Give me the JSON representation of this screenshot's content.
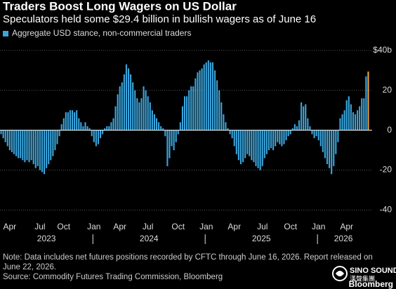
{
  "chart_data": {
    "type": "bar",
    "title": "Traders Boost Long Wagers on US Dollar",
    "subtitle": "Speculators held some $29.4 billion in bullish wagers as of June 16",
    "categories": [
      null,
      null,
      null,
      null,
      "Apr",
      null,
      null,
      null,
      null,
      null,
      null,
      null,
      null,
      null,
      null,
      null,
      null,
      null,
      "Jul",
      null,
      null,
      null,
      null,
      null,
      null,
      null,
      null,
      null,
      null,
      "Oct",
      null,
      null,
      null,
      null,
      null,
      null,
      null,
      null,
      null,
      null,
      null,
      null,
      null,
      "Jan",
      null,
      null,
      null,
      null,
      null,
      null,
      null,
      null,
      null,
      null,
      null,
      "Apr",
      null,
      null,
      null,
      null,
      null,
      null,
      null,
      null,
      null,
      null,
      null,
      null,
      "Jul",
      null,
      null,
      null,
      null,
      null,
      null,
      null,
      null,
      null,
      null,
      null,
      null,
      null,
      "Oct",
      null,
      null,
      null,
      null,
      null,
      null,
      null,
      null,
      null,
      null,
      null,
      null,
      "Jan",
      null,
      null,
      null,
      null,
      null,
      null,
      null,
      null,
      null,
      null,
      null,
      null,
      "Apr",
      null,
      null,
      null,
      null,
      null,
      null,
      null,
      null,
      null,
      null,
      null,
      null,
      "Jul",
      null,
      null,
      null,
      null,
      null,
      null,
      null,
      null,
      null,
      null,
      null,
      null,
      "Oct",
      null,
      null,
      null,
      null,
      null,
      null,
      null,
      null,
      null,
      null,
      null,
      null,
      "Jan",
      null,
      null,
      null,
      null,
      null,
      null,
      null,
      null,
      null,
      null,
      null,
      null,
      "Apr",
      null,
      null,
      null,
      null,
      null,
      null,
      null,
      null,
      null,
      null
    ],
    "x_groups": [
      "2023",
      "2024",
      "2025",
      "2026"
    ],
    "series": [
      {
        "name": "Aggregate USD stance, non-commercial traders",
        "color": "#3aa6de",
        "values": [
          -2,
          -4,
          -6,
          -8,
          -10,
          -11,
          -12,
          -13,
          -14,
          -14,
          -15,
          -16,
          -15,
          -16,
          -15,
          -17,
          -19,
          -18,
          -20,
          -21,
          -22,
          -19,
          -17,
          -15,
          -13,
          -10,
          -7,
          -3,
          3,
          6,
          9,
          9,
          10,
          10,
          9,
          10,
          6,
          4,
          2,
          4,
          2,
          1,
          -3,
          -6,
          -8,
          -7,
          -4,
          -2,
          1,
          2,
          2,
          4,
          6,
          12,
          18,
          22,
          24,
          28,
          33,
          31,
          28,
          24,
          20,
          16,
          14,
          16,
          22,
          20,
          17,
          14,
          10,
          8,
          6,
          4,
          2,
          1,
          -3,
          -18,
          -14,
          -8,
          -10,
          -6,
          -2,
          4,
          12,
          17,
          17,
          20,
          22,
          22,
          26,
          29,
          30,
          31,
          33,
          34,
          35,
          34,
          34,
          30,
          25,
          20,
          14,
          8,
          4,
          1,
          -2,
          -4,
          -8,
          -12,
          -15,
          -17,
          -16,
          -14,
          -12,
          -13,
          -15,
          -16,
          -18,
          -19,
          -20,
          -18,
          -14,
          -12,
          -10,
          -9,
          -10,
          -8,
          -6,
          -7,
          -8,
          -7,
          -5,
          -3,
          -2,
          1,
          3,
          2,
          5,
          14,
          12,
          13,
          6,
          2,
          -2,
          -4,
          -3,
          -5,
          -8,
          -11,
          -14,
          -17,
          -19,
          -22,
          -18,
          -12,
          -6,
          6,
          8,
          10,
          15,
          17,
          13,
          9,
          8,
          10,
          12,
          16,
          16,
          27,
          29.4
        ]
      }
    ],
    "highlight_color": "#f2a33a",
    "ylim": [
      -43,
      41
    ],
    "yticks": [
      {
        "value": 40,
        "label": "$40b"
      },
      20,
      0,
      -20,
      -40
    ],
    "grid": true,
    "note": "Note: Data includes net futures positions recorded by CFTC through June 16, 2026. Report released on June 22, 2026.",
    "source": "Source: Commodity Futures Trading Commission, Bloomberg"
  },
  "logo": {
    "name": "SINO SOUND",
    "name_cn": "漢聲集團"
  },
  "brand": "Bloomberg"
}
